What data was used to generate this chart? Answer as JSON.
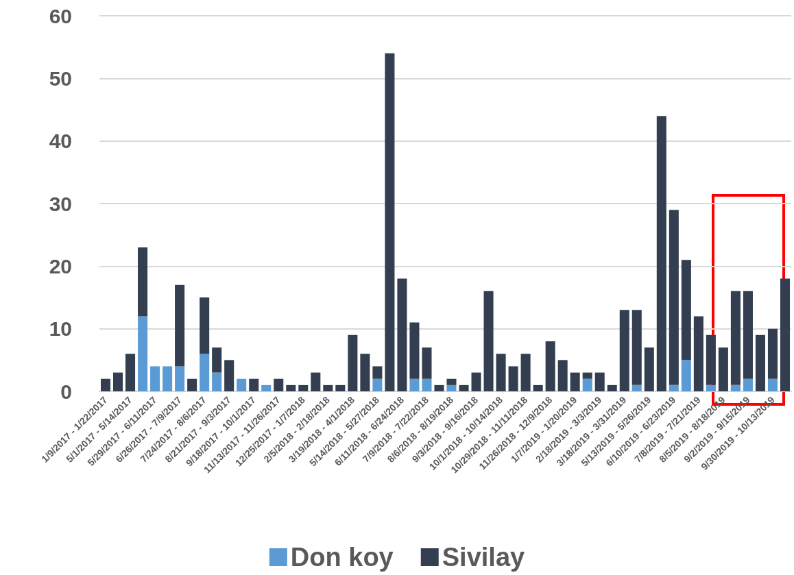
{
  "chart_data": {
    "type": "bar",
    "stacked": true,
    "categories": [
      "1/9/2017 - 1/22/2017",
      null,
      "5/1/2017 - 5/14/2017",
      null,
      "5/29/2017 - 6/11/2017",
      null,
      "6/26/2017 - 7/9/2017",
      null,
      "7/24/2017 - 8/6/2017",
      null,
      "8/21/2017 - 9/3/2017",
      null,
      "9/18/2017 - 10/1/2017",
      null,
      "11/13/2017 - 11/26/2017",
      null,
      "12/25/2017 - 1/7/2018",
      null,
      "2/5/2018 - 2/18/2018",
      null,
      "3/19/2018 - 4/1/2018",
      null,
      "5/14/2018 - 5/27/2018",
      null,
      "6/11/2018 - 6/24/2018",
      null,
      "7/9/2018 - 7/22/2018",
      null,
      "8/6/2018 - 8/19/2018",
      null,
      "9/3/2018 - 9/16/2018",
      null,
      "10/1/2018 - 10/14/2018",
      null,
      "10/29/2018 - 11/11/2018",
      null,
      "11/26/2018 - 12/9/2018",
      null,
      "1/7/2019 - 1/20/2019",
      null,
      "2/18/2019 - 3/3/2019",
      null,
      "3/18/2019 - 3/31/2019",
      null,
      "5/13/2019 - 5/26/2019",
      null,
      "6/10/2019 - 6/23/2019",
      null,
      "7/8/2019 - 7/21/2019",
      null,
      "8/5/2019 - 8/18/2019",
      null,
      "9/2/2019 - 9/15/2019",
      null,
      "9/30/2019 - 10/13/2019",
      null
    ],
    "series": [
      {
        "name": "Don koy",
        "color": "#5b9bd5",
        "values": [
          0,
          0,
          0,
          12,
          4,
          4,
          4,
          0,
          6,
          3,
          0,
          2,
          0,
          1,
          0,
          0,
          0,
          0,
          0,
          0,
          0,
          0,
          2,
          0,
          0,
          2,
          2,
          0,
          1,
          0,
          0,
          0,
          0,
          0,
          0,
          0,
          0,
          0,
          0,
          2,
          0,
          0,
          0,
          1,
          0,
          0,
          1,
          5,
          0,
          1,
          0,
          1,
          2,
          0,
          2,
          0
        ]
      },
      {
        "name": "Sivilay",
        "color": "#333f50",
        "values": [
          2,
          3,
          6,
          11,
          0,
          0,
          13,
          2,
          9,
          4,
          5,
          0,
          2,
          0,
          2,
          1,
          1,
          3,
          1,
          1,
          9,
          6,
          2,
          54,
          18,
          9,
          5,
          1,
          1,
          1,
          3,
          16,
          6,
          4,
          6,
          1,
          8,
          5,
          3,
          1,
          3,
          1,
          13,
          12,
          7,
          44,
          28,
          16,
          12,
          8,
          7,
          15,
          14,
          9,
          8,
          18
        ]
      }
    ],
    "ylim": [
      0,
      60
    ],
    "yticks": [
      0,
      10,
      20,
      30,
      40,
      50,
      60
    ],
    "grid": "y",
    "legend": "bottom"
  }
}
